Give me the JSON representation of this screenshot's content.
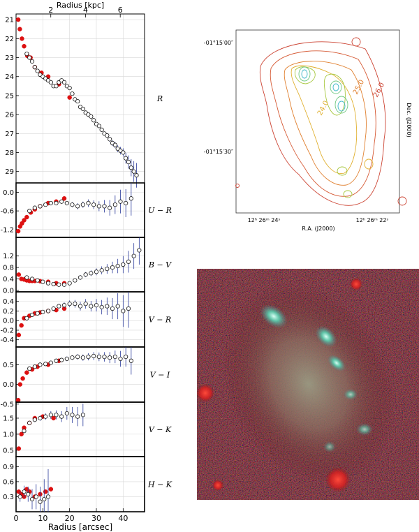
{
  "top_axis": {
    "label": "Radius [kpc]",
    "ticks": [
      2,
      4,
      6
    ],
    "range": [
      0,
      7.4
    ]
  },
  "bottom_axis": {
    "label": "Radius [arcsec]",
    "ticks": [
      0,
      10,
      20,
      30,
      40
    ],
    "range": [
      0,
      48
    ]
  },
  "chart_data": [
    {
      "type": "scatter",
      "panel": "R",
      "ylabel": "R",
      "ylim": [
        29.6,
        20.7
      ],
      "inverted": true,
      "yticks": [
        21,
        22,
        23,
        24,
        25,
        26,
        27,
        28,
        29
      ],
      "series": [
        {
          "marker": "filled",
          "color": "#dd1111",
          "x": [
            0.8,
            1.4,
            2.2,
            3.0,
            4.2,
            5.4,
            7.0,
            9.5,
            12.0,
            16.0,
            20.0
          ],
          "y": [
            21.0,
            21.5,
            22.0,
            22.4,
            22.9,
            23.0,
            23.5,
            23.8,
            24.0,
            24.4,
            25.1
          ]
        },
        {
          "marker": "open",
          "x": [
            4,
            5,
            6,
            7,
            8,
            9,
            10,
            11,
            12,
            13,
            14,
            15,
            16,
            17,
            18,
            19,
            20,
            21,
            22,
            23,
            24,
            25,
            26,
            27,
            28,
            29,
            30,
            31,
            32,
            33,
            34,
            35,
            36,
            37,
            38,
            39,
            40,
            41,
            42,
            43,
            44,
            45
          ],
          "y": [
            22.8,
            23.0,
            23.2,
            23.5,
            23.7,
            23.9,
            24.0,
            24.1,
            24.2,
            24.3,
            24.5,
            24.5,
            24.3,
            24.2,
            24.3,
            24.5,
            24.6,
            24.9,
            25.2,
            25.3,
            25.6,
            25.7,
            25.9,
            26.0,
            26.1,
            26.3,
            26.5,
            26.6,
            26.8,
            27.0,
            27.1,
            27.3,
            27.5,
            27.6,
            27.8,
            27.9,
            28.0,
            28.3,
            28.5,
            28.8,
            29.0,
            29.2
          ],
          "err": [
            0.02,
            0.02,
            0.02,
            0.02,
            0.02,
            0.03,
            0.03,
            0.03,
            0.03,
            0.03,
            0.03,
            0.03,
            0.03,
            0.03,
            0.04,
            0.04,
            0.04,
            0.04,
            0.05,
            0.05,
            0.05,
            0.06,
            0.06,
            0.06,
            0.07,
            0.08,
            0.08,
            0.09,
            0.1,
            0.1,
            0.12,
            0.13,
            0.15,
            0.16,
            0.18,
            0.2,
            0.22,
            0.28,
            0.35,
            0.45,
            0.55,
            0.65
          ]
        }
      ]
    },
    {
      "type": "scatter",
      "panel": "U-R",
      "ylabel": "U − R",
      "ylim": [
        -1.45,
        0.3
      ],
      "yticks": [
        0.0,
        -0.6,
        -1.2
      ],
      "series": [
        {
          "marker": "filled",
          "color": "#dd1111",
          "x": [
            0.8,
            1.5,
            2.2,
            3.0,
            4.0,
            5.5,
            7.0,
            9.0,
            12.0,
            15.0,
            18.0
          ],
          "y": [
            -1.25,
            -1.1,
            -1.0,
            -0.9,
            -0.8,
            -0.65,
            -0.55,
            -0.45,
            -0.35,
            -0.3,
            -0.2
          ]
        },
        {
          "marker": "open",
          "x": [
            5,
            7,
            9,
            11,
            13,
            15,
            17,
            19,
            21,
            23,
            25,
            27,
            29,
            31,
            33,
            35,
            37,
            39,
            41,
            43
          ],
          "y": [
            -0.6,
            -0.5,
            -0.45,
            -0.4,
            -0.35,
            -0.35,
            -0.3,
            -0.35,
            -0.4,
            -0.45,
            -0.4,
            -0.35,
            -0.4,
            -0.45,
            -0.45,
            -0.5,
            -0.4,
            -0.3,
            -0.35,
            -0.2
          ],
          "err": [
            0.03,
            0.03,
            0.04,
            0.04,
            0.05,
            0.05,
            0.06,
            0.07,
            0.08,
            0.1,
            0.1,
            0.12,
            0.14,
            0.16,
            0.2,
            0.25,
            0.3,
            0.38,
            0.45,
            0.55
          ]
        }
      ]
    },
    {
      "type": "scatter",
      "panel": "B-V",
      "ylabel": "B − V",
      "ylim": [
        -0.05,
        1.85
      ],
      "yticks": [
        0.0,
        0.4,
        0.8,
        1.2
      ],
      "series": [
        {
          "marker": "filled",
          "color": "#dd1111",
          "x": [
            1,
            2,
            3,
            4,
            5,
            6,
            7,
            9,
            12,
            15,
            18
          ],
          "y": [
            0.55,
            0.4,
            0.38,
            0.35,
            0.33,
            0.33,
            0.33,
            0.32,
            0.3,
            0.25,
            0.25
          ]
        },
        {
          "marker": "open",
          "x": [
            4,
            6,
            8,
            10,
            12,
            14,
            16,
            18,
            20,
            22,
            24,
            26,
            28,
            30,
            32,
            34,
            36,
            38,
            40,
            42,
            44,
            46
          ],
          "y": [
            0.45,
            0.4,
            0.35,
            0.3,
            0.25,
            0.22,
            0.2,
            0.2,
            0.25,
            0.35,
            0.45,
            0.55,
            0.6,
            0.65,
            0.7,
            0.75,
            0.8,
            0.85,
            0.9,
            1.0,
            1.2,
            1.4
          ],
          "err": [
            0.03,
            0.03,
            0.03,
            0.03,
            0.04,
            0.04,
            0.05,
            0.05,
            0.06,
            0.07,
            0.08,
            0.09,
            0.1,
            0.12,
            0.14,
            0.17,
            0.2,
            0.25,
            0.3,
            0.38,
            0.45,
            0.5
          ]
        }
      ]
    },
    {
      "type": "scatter",
      "panel": "V-R",
      "ylabel": "V − R",
      "ylim": [
        -0.55,
        0.6
      ],
      "yticks": [
        0.4,
        0.2,
        0.0,
        -0.2,
        -0.4
      ],
      "series": [
        {
          "marker": "filled",
          "color": "#dd1111",
          "x": [
            1,
            2,
            3,
            5,
            7,
            9,
            12,
            15,
            18
          ],
          "y": [
            -0.3,
            -0.1,
            0.05,
            0.1,
            0.15,
            0.17,
            0.2,
            0.22,
            0.25
          ]
        },
        {
          "marker": "open",
          "x": [
            4,
            6,
            8,
            10,
            12,
            14,
            16,
            18,
            20,
            22,
            24,
            26,
            28,
            30,
            32,
            34,
            36,
            38,
            40,
            42
          ],
          "y": [
            0.05,
            0.12,
            0.15,
            0.18,
            0.2,
            0.25,
            0.3,
            0.32,
            0.35,
            0.35,
            0.3,
            0.35,
            0.3,
            0.32,
            0.28,
            0.3,
            0.25,
            0.3,
            0.2,
            0.25
          ],
          "err": [
            0.03,
            0.03,
            0.04,
            0.04,
            0.04,
            0.05,
            0.05,
            0.06,
            0.07,
            0.08,
            0.09,
            0.1,
            0.11,
            0.13,
            0.15,
            0.18,
            0.22,
            0.27,
            0.33,
            0.4
          ]
        }
      ]
    },
    {
      "type": "scatter",
      "panel": "V-I",
      "ylabel": "V − I",
      "ylim": [
        -0.45,
        0.95
      ],
      "yticks": [
        0.5,
        0.0,
        -0.5
      ],
      "series": [
        {
          "marker": "filled",
          "color": "#dd1111",
          "x": [
            0.8,
            1.5,
            2.5,
            4,
            6,
            8,
            12,
            16
          ],
          "y": [
            -0.4,
            0.0,
            0.15,
            0.3,
            0.38,
            0.45,
            0.5,
            0.6
          ]
        },
        {
          "marker": "open",
          "x": [
            5,
            7,
            9,
            11,
            13,
            15,
            17,
            19,
            21,
            23,
            25,
            27,
            29,
            31,
            33,
            35,
            37,
            39,
            41,
            43
          ],
          "y": [
            0.4,
            0.45,
            0.5,
            0.52,
            0.55,
            0.6,
            0.62,
            0.65,
            0.68,
            0.7,
            0.68,
            0.7,
            0.72,
            0.7,
            0.7,
            0.68,
            0.7,
            0.65,
            0.7,
            0.6
          ],
          "err": [
            0.03,
            0.03,
            0.03,
            0.04,
            0.04,
            0.05,
            0.05,
            0.06,
            0.06,
            0.07,
            0.08,
            0.09,
            0.1,
            0.11,
            0.12,
            0.14,
            0.16,
            0.2,
            0.25,
            0.35
          ]
        }
      ]
    },
    {
      "type": "scatter",
      "panel": "V-K",
      "ylabel": "V − K",
      "ylim": [
        0.3,
        2.0
      ],
      "yticks": [
        1.5,
        1.0,
        0.5
      ],
      "series": [
        {
          "marker": "filled",
          "color": "#dd1111",
          "x": [
            1,
            2,
            3,
            5,
            7,
            10,
            14
          ],
          "y": [
            0.55,
            1.0,
            1.2,
            1.35,
            1.5,
            1.55,
            1.5
          ]
        },
        {
          "marker": "open",
          "x": [
            3,
            5,
            7,
            9,
            11,
            13,
            15,
            17,
            19,
            21,
            23,
            25
          ],
          "y": [
            1.1,
            1.35,
            1.45,
            1.5,
            1.55,
            1.6,
            1.6,
            1.55,
            1.65,
            1.6,
            1.55,
            1.6
          ],
          "err": [
            0.05,
            0.06,
            0.07,
            0.08,
            0.1,
            0.12,
            0.14,
            0.17,
            0.2,
            0.25,
            0.3,
            0.35
          ]
        }
      ]
    },
    {
      "type": "scatter",
      "panel": "H-K",
      "ylabel": "H − K",
      "ylim": [
        0.0,
        1.1
      ],
      "yticks": [
        0.9,
        0.6,
        0.3
      ],
      "series": [
        {
          "marker": "filled",
          "color": "#dd1111",
          "x": [
            1,
            2,
            3,
            4,
            5,
            7,
            9,
            11,
            13
          ],
          "y": [
            0.4,
            0.35,
            0.3,
            0.45,
            0.4,
            0.3,
            0.35,
            0.4,
            0.45
          ]
        },
        {
          "marker": "open",
          "x": [
            1.5,
            3,
            4.5,
            6,
            7.5,
            9,
            10.5,
            12
          ],
          "y": [
            0.3,
            0.4,
            0.35,
            0.25,
            0.3,
            0.2,
            0.25,
            0.3
          ],
          "err": [
            0.1,
            0.12,
            0.15,
            0.2,
            0.25,
            0.3,
            0.4,
            0.55
          ]
        }
      ]
    }
  ],
  "contour_map": {
    "dec_ticks": [
      "-01°15′00″",
      "-01°15′30″"
    ],
    "ra_ticks": [
      "12ʰ 26ᵐ 24ˢ",
      "12ʰ 26ᵐ 22ˢ"
    ],
    "xlabel": "R.A. (J2000)",
    "ylabel": "Dec. (J2000)",
    "contour_labels": [
      "26.0",
      "25.0",
      "24.0"
    ],
    "colors": [
      "#cc4433",
      "#e08030",
      "#e0b030",
      "#a8c840",
      "#70c880",
      "#40b8c8"
    ]
  },
  "color_image": {
    "subject": "galaxy-color-composite"
  }
}
